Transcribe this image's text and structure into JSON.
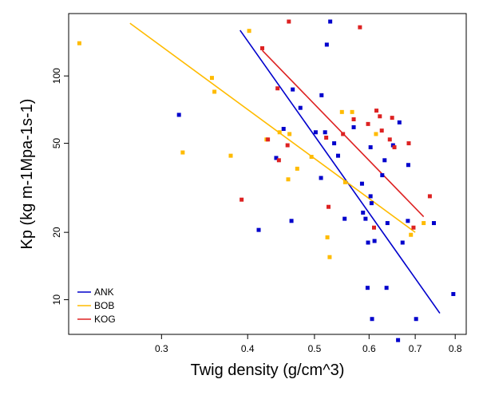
{
  "chart_data": {
    "type": "scatter",
    "title": "",
    "xlabel": "Twig density (g/cm^3)",
    "ylabel": "Kp (kg m-1Mpa-1s-1)",
    "x_scale": "log",
    "y_scale": "log",
    "xlim": [
      0.22,
      0.83
    ],
    "ylim": [
      7,
      190
    ],
    "x_ticks": [
      {
        "value": 0.3,
        "label": "0.3"
      },
      {
        "value": 0.4,
        "label": "0.4"
      },
      {
        "value": 0.5,
        "label": "0.5"
      },
      {
        "value": 0.6,
        "label": "0.6"
      },
      {
        "value": 0.7,
        "label": "0.7"
      },
      {
        "value": 0.8,
        "label": "0.8"
      }
    ],
    "y_ticks": [
      {
        "value": 10,
        "label": "10"
      },
      {
        "value": 20,
        "label": "20"
      },
      {
        "value": 50,
        "label": "50"
      },
      {
        "value": 100,
        "label": "100"
      }
    ],
    "grid": false,
    "legend_position": "bottom-left",
    "series": [
      {
        "name": "ANK",
        "color": "#0000cc",
        "points": [
          [
            0.318,
            67
          ],
          [
            0.415,
            20.5
          ],
          [
            0.44,
            43
          ],
          [
            0.451,
            58
          ],
          [
            0.463,
            22.5
          ],
          [
            0.465,
            87
          ],
          [
            0.477,
            72
          ],
          [
            0.502,
            56
          ],
          [
            0.511,
            35
          ],
          [
            0.512,
            82
          ],
          [
            0.518,
            56
          ],
          [
            0.521,
            138
          ],
          [
            0.527,
            175
          ],
          [
            0.534,
            50
          ],
          [
            0.541,
            44
          ],
          [
            0.553,
            23
          ],
          [
            0.57,
            59
          ],
          [
            0.586,
            33
          ],
          [
            0.588,
            24.5
          ],
          [
            0.593,
            23
          ],
          [
            0.597,
            11.3
          ],
          [
            0.598,
            18
          ],
          [
            0.603,
            48
          ],
          [
            0.603,
            29
          ],
          [
            0.605,
            27
          ],
          [
            0.606,
            8.2
          ],
          [
            0.611,
            18.3
          ],
          [
            0.627,
            36
          ],
          [
            0.632,
            42
          ],
          [
            0.636,
            11.3
          ],
          [
            0.638,
            22
          ],
          [
            0.65,
            49
          ],
          [
            0.661,
            6.6
          ],
          [
            0.664,
            62
          ],
          [
            0.671,
            18
          ],
          [
            0.683,
            22.5
          ],
          [
            0.684,
            40
          ],
          [
            0.702,
            8.2
          ],
          [
            0.745,
            22
          ],
          [
            0.795,
            10.6
          ]
        ],
        "fit": [
          [
            0.39,
            160
          ],
          [
            0.76,
            8.7
          ]
        ]
      },
      {
        "name": "BOB",
        "color": "#ffbb00",
        "points": [
          [
            0.228,
            140
          ],
          [
            0.322,
            45.5
          ],
          [
            0.355,
            98
          ],
          [
            0.358,
            85
          ],
          [
            0.378,
            44
          ],
          [
            0.402,
            159
          ],
          [
            0.426,
            52
          ],
          [
            0.445,
            56
          ],
          [
            0.458,
            34.5
          ],
          [
            0.46,
            55
          ],
          [
            0.472,
            38.5
          ],
          [
            0.495,
            43.5
          ],
          [
            0.522,
            19
          ],
          [
            0.526,
            15.5
          ],
          [
            0.548,
            69
          ],
          [
            0.554,
            33.5
          ],
          [
            0.567,
            69
          ],
          [
            0.614,
            55
          ],
          [
            0.69,
            19.5
          ],
          [
            0.72,
            22
          ]
        ],
        "fit": [
          [
            0.27,
            172
          ],
          [
            0.7,
            20
          ]
        ]
      },
      {
        "name": "KOG",
        "color": "#dd2222",
        "points": [
          [
            0.392,
            28
          ],
          [
            0.42,
            133
          ],
          [
            0.428,
            52
          ],
          [
            0.442,
            88
          ],
          [
            0.444,
            42
          ],
          [
            0.457,
            49
          ],
          [
            0.459,
            175
          ],
          [
            0.52,
            53
          ],
          [
            0.524,
            26
          ],
          [
            0.55,
            55
          ],
          [
            0.57,
            64
          ],
          [
            0.582,
            165
          ],
          [
            0.598,
            61
          ],
          [
            0.61,
            21
          ],
          [
            0.615,
            70
          ],
          [
            0.622,
            66
          ],
          [
            0.626,
            57
          ],
          [
            0.643,
            52
          ],
          [
            0.648,
            65
          ],
          [
            0.653,
            48
          ],
          [
            0.685,
            50
          ],
          [
            0.696,
            21
          ],
          [
            0.735,
            29
          ]
        ],
        "fit": [
          [
            0.42,
            130
          ],
          [
            0.72,
            23.5
          ]
        ]
      }
    ]
  }
}
